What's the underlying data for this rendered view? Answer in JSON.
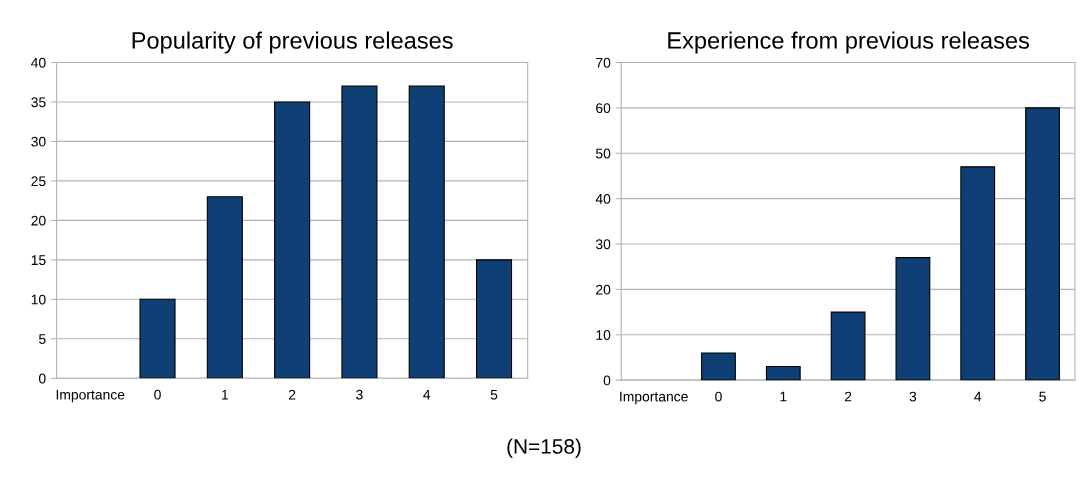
{
  "chart_data": [
    {
      "type": "bar",
      "title": "Popularity of previous releases",
      "categories": [
        "Importance",
        "0",
        "1",
        "2",
        "3",
        "4",
        "5"
      ],
      "values": [
        null,
        10,
        23,
        35,
        37,
        37,
        15
      ],
      "color": "#103f76",
      "ylim": [
        0,
        40
      ],
      "yticks": [
        0,
        5,
        10,
        15,
        20,
        25,
        30,
        35,
        40
      ],
      "grid": "y",
      "annotations": [
        "(N=158)"
      ]
    },
    {
      "type": "bar",
      "title": "Experience from previous releases",
      "categories": [
        "Importance",
        "0",
        "1",
        "2",
        "3",
        "4",
        "5"
      ],
      "values": [
        null,
        6,
        3,
        15,
        27,
        47,
        60
      ],
      "color": "#103f76",
      "ylim": [
        0,
        70
      ],
      "yticks": [
        0,
        10,
        20,
        30,
        40,
        50,
        60,
        70
      ],
      "grid": "y"
    }
  ]
}
